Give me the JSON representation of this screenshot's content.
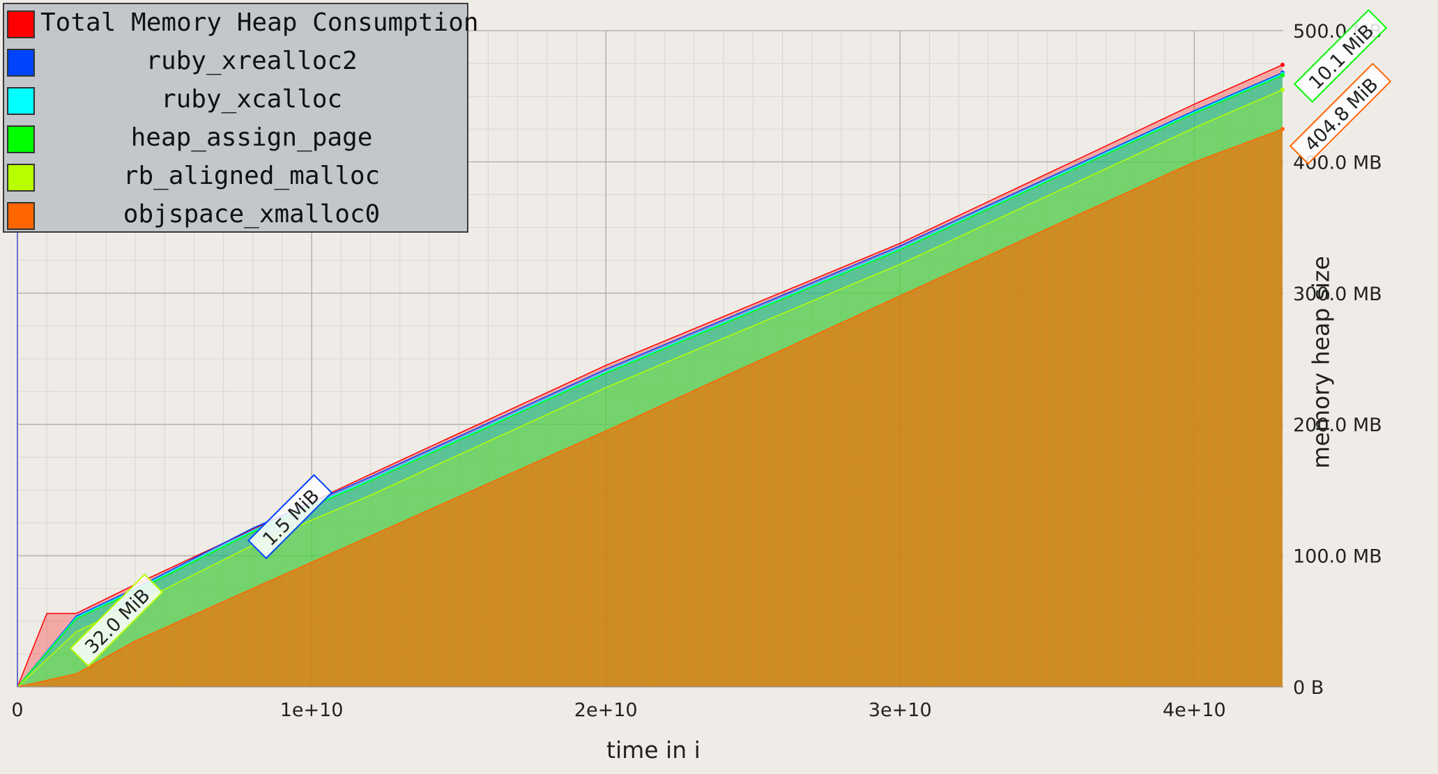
{
  "chart_data": {
    "type": "area",
    "xlabel": "time in i",
    "ylabel": "memory heap size",
    "xlim": [
      0,
      43000000000.0
    ],
    "ylim": [
      0,
      500
    ],
    "x_ticks": [
      {
        "value": 0,
        "label": "0"
      },
      {
        "value": 10000000000.0,
        "label": "1e+10"
      },
      {
        "value": 20000000000.0,
        "label": "2e+10"
      },
      {
        "value": 30000000000.0,
        "label": "3e+10"
      },
      {
        "value": 40000000000.0,
        "label": "4e+10"
      }
    ],
    "y_ticks": [
      {
        "value": 0,
        "label": "0 B"
      },
      {
        "value": 100,
        "label": "100.0 MB"
      },
      {
        "value": 200,
        "label": "200.0 MB"
      },
      {
        "value": 300,
        "label": "300.0 MB"
      },
      {
        "value": 400,
        "label": "400.0 MB"
      },
      {
        "value": 500,
        "label": "500.0 MB"
      }
    ],
    "grid": true,
    "legend_position": "top-left",
    "series": [
      {
        "name": "Total Memory Heap Consumption",
        "color": "#ff0000",
        "x": [
          0,
          1000000000.0,
          2000000000.0,
          4000000000.0,
          8000000000.0,
          12000000000.0,
          20000000000.0,
          30000000000.0,
          40000000000.0,
          43000000000.0
        ],
        "y": [
          0,
          56,
          56,
          78,
          120,
          162,
          245,
          338,
          444,
          474
        ]
      },
      {
        "name": "ruby_xrealloc2",
        "color": "#0044ff",
        "x": [
          0,
          2000000000.0,
          4000000000.0,
          8000000000.0,
          12000000000.0,
          20000000000.0,
          30000000000.0,
          40000000000.0,
          43000000000.0
        ],
        "y": [
          0,
          54,
          75,
          121,
          160,
          242,
          336,
          439,
          468
        ]
      },
      {
        "name": "ruby_xcalloc",
        "color": "#00ffff",
        "x": [
          0,
          2000000000.0,
          4000000000.0,
          8000000000.0,
          12000000000.0,
          20000000000.0,
          30000000000.0,
          40000000000.0,
          43000000000.0
        ],
        "y": [
          0,
          53,
          74,
          119,
          158,
          240,
          334,
          438,
          467
        ]
      },
      {
        "name": "heap_assign_page",
        "color": "#00ff00",
        "x": [
          0,
          2000000000.0,
          4000000000.0,
          8000000000.0,
          12000000000.0,
          20000000000.0,
          30000000000.0,
          40000000000.0,
          43000000000.0
        ],
        "y": [
          0,
          52,
          73,
          118,
          157,
          239,
          333,
          437,
          466
        ]
      },
      {
        "name": "rb_aligned_malloc",
        "color": "#b8ff00",
        "x": [
          0,
          2000000000.0,
          4000000000.0,
          8000000000.0,
          12000000000.0,
          20000000000.0,
          30000000000.0,
          40000000000.0,
          43000000000.0
        ],
        "y": [
          0,
          42,
          63,
          108,
          146,
          228,
          322,
          426,
          455
        ]
      },
      {
        "name": "objspace_xmalloc0",
        "color": "#ff6600",
        "x": [
          0,
          2000000000.0,
          4000000000.0,
          10000000000.0,
          20000000000.0,
          30000000000.0,
          40000000000.0,
          43000000000.0
        ],
        "y": [
          0,
          10,
          35,
          95,
          195,
          298,
          400,
          425
        ]
      }
    ],
    "annotations": [
      {
        "text": "32.0 MiB",
        "color": "#b8ff00",
        "x": 3400000000.0,
        "y": 50
      },
      {
        "text": "1.5 MiB",
        "color": "#0044ff",
        "x": 9300000000.0,
        "y": 129
      },
      {
        "text": "10.1 MiB",
        "color": "#00ff00",
        "x": 45000000000.0,
        "y": 480
      },
      {
        "text": "404.8 MiB",
        "color": "#ff6600",
        "x": 45000000000.0,
        "y": 436
      }
    ]
  }
}
